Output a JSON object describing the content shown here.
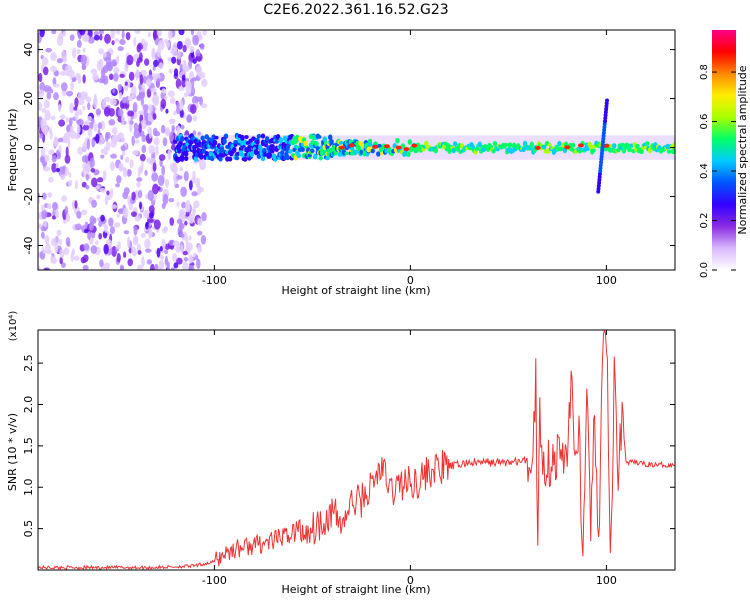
{
  "title": "C2E6.2022.361.16.52.G23",
  "chart_data": [
    {
      "type": "heatmap",
      "xlabel": "Height of straight line (km)",
      "ylabel": "Frequency (Hz)",
      "xlim": [
        -190,
        135
      ],
      "ylim": [
        -50,
        48
      ],
      "xticks": [
        -100,
        0,
        100
      ],
      "xtick_labels": [
        "-100",
        "0",
        "100"
      ],
      "yticks": [
        -40,
        -20,
        0,
        20,
        40
      ],
      "ytick_labels": [
        "-40",
        "-20",
        "0",
        "20",
        "40"
      ],
      "colorbar": {
        "label": "Normalized spectral amplitude",
        "range": [
          0,
          0.97
        ],
        "ticks": [
          0,
          0.2,
          0.4,
          0.6,
          0.8
        ],
        "tick_labels": [
          "0.0",
          "0.2",
          "0.4",
          "0.6",
          "0.8"
        ],
        "colors": [
          "#ffffff",
          "#d9b8ff",
          "#8a2be2",
          "#3300ff",
          "#0055ff",
          "#00ccff",
          "#00ff66",
          "#aaff00",
          "#ffee00",
          "#ff8800",
          "#ff0000",
          "#ff0088"
        ]
      },
      "grid": false
    },
    {
      "type": "line",
      "xlabel": "Height of straight line (km)",
      "ylabel": "SNR (10 * v/v)",
      "y_multiplier": "(x10⁴)",
      "xlim": [
        -190,
        135
      ],
      "ylim": [
        0,
        2.9
      ],
      "xticks": [
        -100,
        0,
        100
      ],
      "xtick_labels": [
        "-100",
        "0",
        "100"
      ],
      "yticks": [
        0.5,
        1.0,
        1.5,
        2.0,
        2.5
      ],
      "ytick_labels": [
        "0.5",
        "1.0",
        "1.5",
        "2.0",
        "2.5"
      ],
      "color": "#ee3333",
      "grid": false,
      "series": [
        {
          "x": [
            -190,
            -160,
            -130,
            -110,
            -100,
            -95,
            -90,
            -80,
            -70,
            -60,
            -50,
            -45,
            -40,
            -35,
            -30,
            -25,
            -20,
            -15,
            -10,
            -5,
            0,
            5,
            10,
            20,
            30,
            40,
            50,
            60,
            62,
            64,
            65,
            66,
            68,
            70,
            75,
            80,
            82,
            84,
            86,
            88,
            90,
            92,
            94,
            96,
            98,
            100,
            102,
            104,
            106,
            108,
            110,
            115,
            120,
            125,
            130,
            135
          ],
          "y": [
            0.03,
            0.03,
            0.03,
            0.05,
            0.1,
            0.2,
            0.25,
            0.3,
            0.35,
            0.45,
            0.5,
            0.6,
            0.7,
            0.55,
            0.8,
            0.85,
            1.0,
            1.25,
            0.95,
            1.05,
            1.05,
            1.1,
            1.2,
            1.25,
            1.3,
            1.3,
            1.3,
            1.32,
            1.32,
            2.3,
            0.3,
            1.85,
            1.3,
            1.3,
            1.35,
            1.4,
            2.4,
            1.1,
            1.8,
            0.1,
            2.0,
            0.4,
            2.1,
            0.05,
            2.5,
            2.95,
            0.05,
            2.3,
            1.3,
            1.9,
            1.3,
            1.3,
            1.28,
            1.27,
            1.27,
            1.27
          ]
        }
      ]
    }
  ]
}
